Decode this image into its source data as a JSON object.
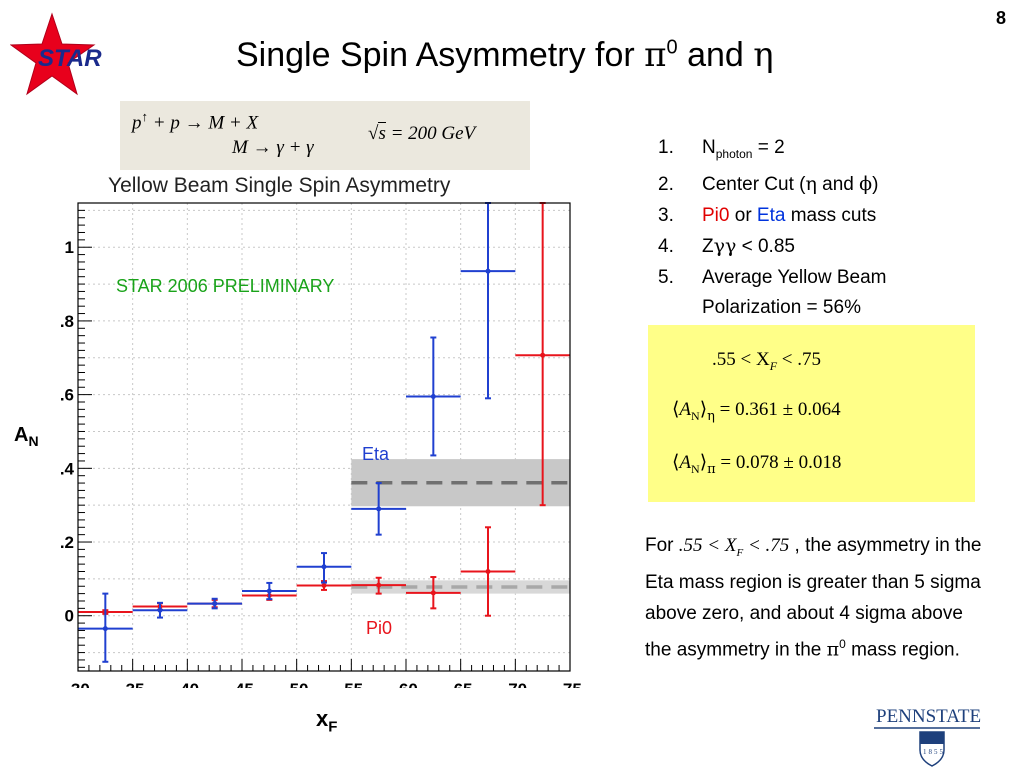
{
  "slide_number": "8",
  "logo": {
    "text": "STAR",
    "star_color": "#e8001c",
    "text_color": "#1a2a8c"
  },
  "title": {
    "prefix": "Single Spin Asymmetry for ",
    "pi_symbol": "π",
    "pi_sup": "0",
    "and": " and ",
    "eta_symbol": "η"
  },
  "formula": {
    "line1_p": "p",
    "line1_arrow_up": "↑",
    "line1_rest": "+ p → M + X",
    "line2": "M → γ + γ",
    "sqrt_s": "s",
    "sqrt_value": "= 200 GeV"
  },
  "chart_data": {
    "type": "scatter",
    "title": "Yellow Beam Single Spin Asymmetry",
    "xlabel": "x",
    "xlabel_sub": "F",
    "ylabel": "A",
    "ylabel_sub": "N",
    "xlim": [
      0.3,
      0.75
    ],
    "ylim": [
      -0.15,
      1.12
    ],
    "x_ticks": [
      ".30",
      ".35",
      ".40",
      ".45",
      ".50",
      ".55",
      ".60",
      ".65",
      ".70",
      ".75"
    ],
    "x_tick_values": [
      0.3,
      0.35,
      0.4,
      0.45,
      0.5,
      0.55,
      0.6,
      0.65,
      0.7,
      0.75
    ],
    "y_ticks": [
      "0",
      "0.2",
      "0.4",
      "0.6",
      "0.8",
      "1"
    ],
    "y_tick_values": [
      0,
      0.2,
      0.4,
      0.6,
      0.8,
      1.0
    ],
    "grid": true,
    "annotation": "STAR 2006 PRELIMINARY",
    "series": [
      {
        "name": "Pi0",
        "color": "#e8141c",
        "points": [
          {
            "x": 0.325,
            "y": 0.01,
            "xlo": 0.3,
            "xhi": 0.35,
            "ylo": 0.005,
            "yhi": 0.015
          },
          {
            "x": 0.375,
            "y": 0.025,
            "xlo": 0.35,
            "xhi": 0.4,
            "ylo": 0.016,
            "yhi": 0.034
          },
          {
            "x": 0.425,
            "y": 0.033,
            "xlo": 0.4,
            "xhi": 0.45,
            "ylo": 0.023,
            "yhi": 0.043
          },
          {
            "x": 0.475,
            "y": 0.055,
            "xlo": 0.45,
            "xhi": 0.5,
            "ylo": 0.043,
            "yhi": 0.067
          },
          {
            "x": 0.525,
            "y": 0.082,
            "xlo": 0.5,
            "xhi": 0.55,
            "ylo": 0.07,
            "yhi": 0.094
          },
          {
            "x": 0.575,
            "y": 0.083,
            "xlo": 0.55,
            "xhi": 0.6,
            "ylo": 0.06,
            "yhi": 0.103
          },
          {
            "x": 0.625,
            "y": 0.062,
            "xlo": 0.6,
            "xhi": 0.65,
            "ylo": 0.02,
            "yhi": 0.105
          },
          {
            "x": 0.675,
            "y": 0.12,
            "xlo": 0.65,
            "xhi": 0.7,
            "ylo": 0.0,
            "yhi": 0.24
          },
          {
            "x": 0.725,
            "y": 0.707,
            "xlo": 0.7,
            "xhi": 0.75,
            "ylo": 0.3,
            "yhi": 1.12
          }
        ]
      },
      {
        "name": "Eta",
        "color": "#2040d0",
        "points": [
          {
            "x": 0.325,
            "y": -0.035,
            "xlo": 0.3,
            "xhi": 0.35,
            "ylo": -0.125,
            "yhi": 0.06
          },
          {
            "x": 0.375,
            "y": 0.015,
            "xlo": 0.35,
            "xhi": 0.4,
            "ylo": -0.005,
            "yhi": 0.035
          },
          {
            "x": 0.425,
            "y": 0.033,
            "xlo": 0.4,
            "xhi": 0.45,
            "ylo": 0.02,
            "yhi": 0.046
          },
          {
            "x": 0.475,
            "y": 0.067,
            "xlo": 0.45,
            "xhi": 0.5,
            "ylo": 0.045,
            "yhi": 0.089
          },
          {
            "x": 0.525,
            "y": 0.133,
            "xlo": 0.5,
            "xhi": 0.55,
            "ylo": 0.09,
            "yhi": 0.17
          },
          {
            "x": 0.575,
            "y": 0.29,
            "xlo": 0.55,
            "xhi": 0.6,
            "ylo": 0.22,
            "yhi": 0.36
          },
          {
            "x": 0.625,
            "y": 0.595,
            "xlo": 0.6,
            "xhi": 0.65,
            "ylo": 0.435,
            "yhi": 0.755
          },
          {
            "x": 0.675,
            "y": 0.935,
            "xlo": 0.65,
            "xhi": 0.7,
            "ylo": 0.59,
            "yhi": 1.12
          }
        ]
      }
    ],
    "bands": [
      {
        "name": "Eta",
        "mean": 0.361,
        "err": 0.064,
        "x_range": [
          0.55,
          0.75
        ],
        "fill": "#c8c8c8",
        "line": "#707070"
      },
      {
        "name": "Pi0",
        "mean": 0.078,
        "err": 0.018,
        "x_range": [
          0.55,
          0.75
        ],
        "fill": "#d8d8d8",
        "line": "#a8a8a8"
      }
    ],
    "labels": {
      "eta": "Eta",
      "pi0": "Pi0"
    }
  },
  "criteria": [
    {
      "num": "1.",
      "text_pre": "N",
      "sub": "photon",
      "text_post": " = 2"
    },
    {
      "num": "2.",
      "text_pre": "Center Cut (",
      "g1": "η",
      "mid": " and ",
      "g2": "ϕ",
      "text_post": ")"
    },
    {
      "num": "3.",
      "red": "Pi0",
      "or": " or ",
      "blue": "Eta",
      "rest": " mass cuts"
    },
    {
      "num": "4.",
      "text_pre": "Z",
      "g1": "γγ",
      "text_post": " < 0.85"
    },
    {
      "num": "5.",
      "text_pre": "Average Yellow Beam"
    },
    {
      "num": "",
      "text_pre": "Polarization = 56%"
    }
  ],
  "results": {
    "range": ".55 < X",
    "range_sub": "F",
    "range_end": " < .75",
    "eta_lhs": "A",
    "eta_sub": "N",
    "eta_idx": "η",
    "eta_rhs": "= 0.361 ± 0.064",
    "pi_lhs": "A",
    "pi_sub": "N",
    "pi_idx": "π",
    "pi_rhs": "= 0.078 ± 0.018"
  },
  "conclusion": {
    "for": "For ",
    "range": ".55 < X",
    "range_sub": "F",
    "range_end": " < .75",
    "text1": " , the asymmetry in the Eta mass region is greater than 5 sigma above zero, and about 4 sigma above the asymmetry in the ",
    "pi": "π",
    "pi_sup": "0",
    "text2": " mass region."
  },
  "pennstate": {
    "name": "PENNSTATE",
    "year": "1855",
    "color": "#1e407c"
  }
}
